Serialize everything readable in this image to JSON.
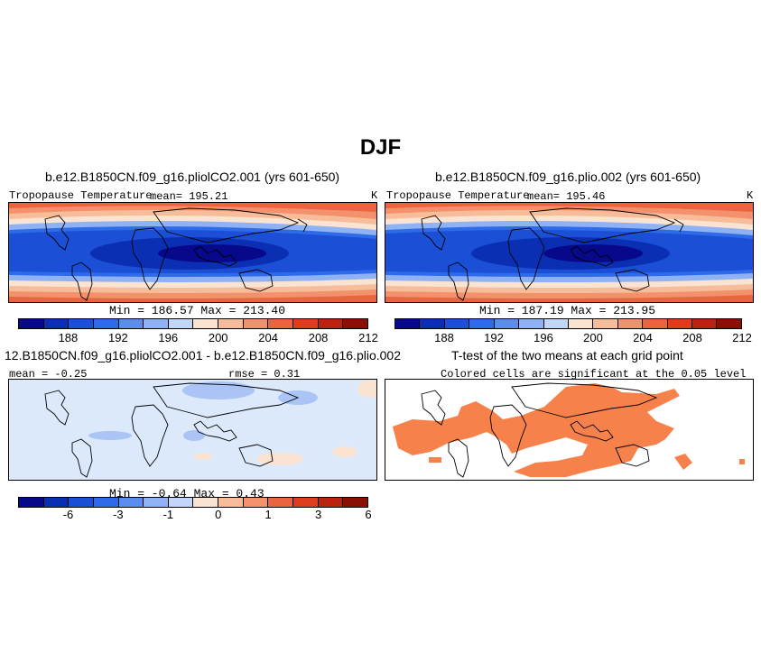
{
  "title": "DJF",
  "panels": [
    {
      "title": "b.e12.B1850CN.f09_g16.pliolCO2.001 (yrs 601-650)",
      "variable": "Tropopause Temperature",
      "mean": "mean= 195.21",
      "units": "K",
      "minmax": "Min = 186.57 Max = 213.40"
    },
    {
      "title": "b.e12.B1850CN.f09_g16.plio.002 (yrs 601-650)",
      "variable": "Tropopause Temperature",
      "mean": "mean= 195.46",
      "units": "K",
      "minmax": "Min = 187.19 Max = 213.95"
    },
    {
      "title": "12.B1850CN.f09_g16.pliolCO2.001 - b.e12.B1850CN.f09_g16.plio.002",
      "mean": "mean = -0.25",
      "rmse": "rmse = 0.31",
      "minmax": "Min = -0.64 Max = 0.43"
    },
    {
      "title": "T-test of the two means at each grid point",
      "subtitle": "Colored cells are significant at the 0.05 level"
    }
  ],
  "colorbar_abs": {
    "colors": [
      "#08088a",
      "#0a2fb3",
      "#1a4fd6",
      "#2f6be8",
      "#5b8cef",
      "#8fb2f4",
      "#c2d6f8",
      "#fbe3d2",
      "#f7bd9b",
      "#f2916b",
      "#ea643f",
      "#dd3d1c",
      "#b9230f",
      "#8a0f05"
    ],
    "ticks": [
      "188",
      "192",
      "196",
      "200",
      "204",
      "208",
      "212"
    ]
  },
  "colorbar_diff": {
    "colors": [
      "#08088a",
      "#0a2fb3",
      "#1a4fd6",
      "#2f6be8",
      "#5b8cef",
      "#8fb2f4",
      "#c2d6f8",
      "#fbe3d2",
      "#f7bd9b",
      "#f2916b",
      "#ea643f",
      "#dd3d1c",
      "#b9230f",
      "#8a0f05"
    ],
    "ticks": [
      "-6",
      "-3",
      "-1",
      "0",
      "1",
      "3",
      "6"
    ]
  },
  "colors": {
    "significant": "#f7814a",
    "diff_background": "#dbe9fb"
  }
}
